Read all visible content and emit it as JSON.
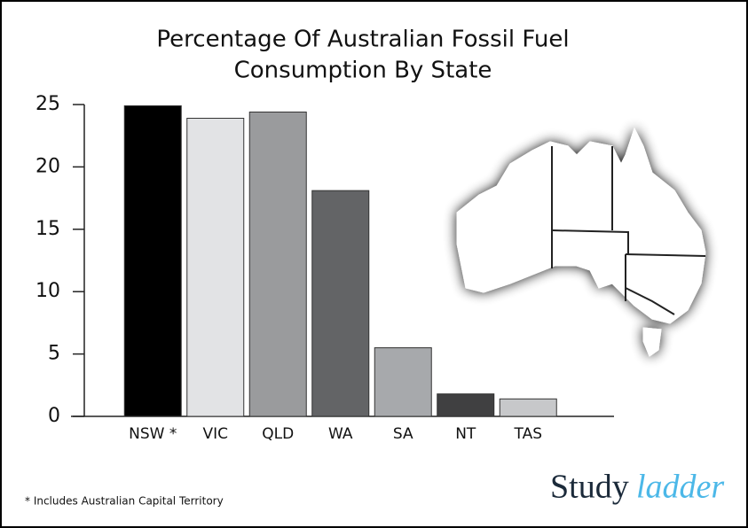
{
  "chart_data": {
    "type": "bar",
    "title": [
      "Percentage Of Australian Fossil Fuel",
      "Consumption By State"
    ],
    "categories": [
      "NSW *",
      "VIC",
      "QLD",
      "WA",
      "SA",
      "NT",
      "TAS"
    ],
    "values": [
      24.9,
      23.9,
      24.4,
      18.1,
      5.5,
      1.8,
      1.4
    ],
    "colors": [
      "#000000",
      "#e2e3e5",
      "#9a9b9d",
      "#636466",
      "#a7a9ac",
      "#404041",
      "#c7c8ca"
    ],
    "ylim": [
      0,
      25
    ],
    "yticks": [
      0,
      5,
      10,
      15,
      20,
      25
    ],
    "footnote": "* Includes Australian Capital Territory"
  },
  "logo": {
    "study": "Study",
    "ladder": "ladder"
  }
}
